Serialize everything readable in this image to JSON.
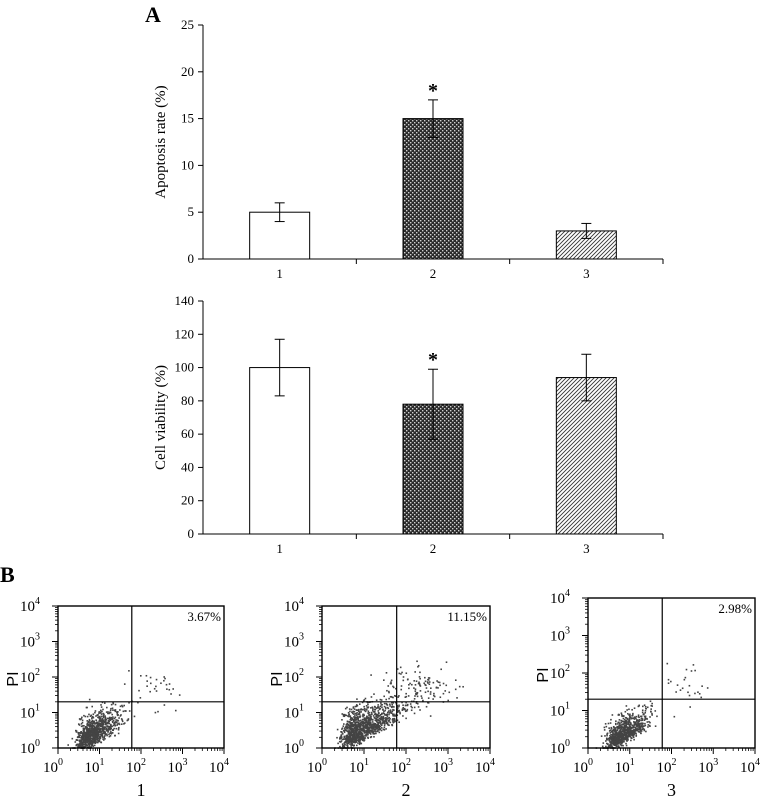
{
  "panel_a_label": "A",
  "panel_b_label": "B",
  "chart_data": [
    {
      "type": "bar",
      "categories": [
        "1",
        "2",
        "3"
      ],
      "values": [
        5,
        15,
        3
      ],
      "errors": [
        1,
        2,
        0.8
      ],
      "significance": [
        "",
        "*",
        ""
      ],
      "xlabel": "",
      "ylabel": "Apoptosis rate (%)",
      "ylim": [
        0,
        25
      ],
      "yticks": [
        0,
        5,
        10,
        15,
        20,
        25
      ],
      "fills": [
        "white",
        "dots",
        "diagonal"
      ],
      "grid": false
    },
    {
      "type": "bar",
      "categories": [
        "1",
        "2",
        "3"
      ],
      "values": [
        100,
        78,
        94
      ],
      "errors": [
        17,
        21,
        14
      ],
      "significance": [
        "",
        "*",
        ""
      ],
      "xlabel": "",
      "ylabel": "Cell viability (%)",
      "ylim": [
        0,
        140
      ],
      "yticks": [
        0,
        20,
        40,
        60,
        80,
        100,
        120,
        140
      ],
      "fills": [
        "white",
        "dots",
        "diagonal"
      ],
      "grid": false
    },
    {
      "type": "scatter",
      "panels": [
        {
          "caption": "1",
          "percent": "3.67%",
          "spread": 1.0,
          "upper_cluster": 30
        },
        {
          "caption": "2",
          "percent": "11.15%",
          "spread": 1.35,
          "upper_cluster": 110
        },
        {
          "caption": "3",
          "percent": "2.98%",
          "spread": 0.9,
          "upper_cluster": 24
        }
      ],
      "xlabel": "",
      "ylabel": "PI",
      "xscale": "log",
      "yscale": "log",
      "xlim": [
        1,
        10000
      ],
      "ylim": [
        1,
        10000
      ],
      "gate_x": 60,
      "gate_y": 20,
      "tick_base": "10",
      "tick_exponents": [
        "0",
        "1",
        "2",
        "3",
        "4"
      ]
    }
  ]
}
